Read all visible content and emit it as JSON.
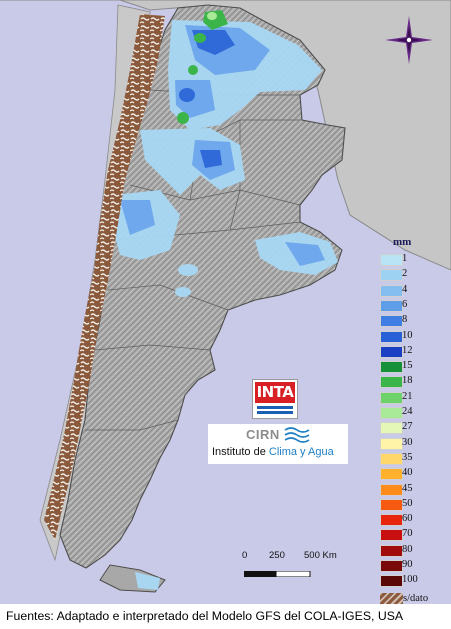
{
  "legend": {
    "unit": "mm",
    "entries": [
      {
        "label": "1",
        "color": "#b8e4f5"
      },
      {
        "label": "2",
        "color": "#9dd2f2"
      },
      {
        "label": "4",
        "color": "#84bdef"
      },
      {
        "label": "6",
        "color": "#5e9ee9"
      },
      {
        "label": "8",
        "color": "#3f7fe3"
      },
      {
        "label": "10",
        "color": "#2860d8"
      },
      {
        "label": "12",
        "color": "#1a3fc2"
      },
      {
        "label": "15",
        "color": "#16913a"
      },
      {
        "label": "18",
        "color": "#3bb54a"
      },
      {
        "label": "21",
        "color": "#6dd26a"
      },
      {
        "label": "24",
        "color": "#a9ea98"
      },
      {
        "label": "27",
        "color": "#e4f7b6"
      },
      {
        "label": "30",
        "color": "#fff4a8"
      },
      {
        "label": "35",
        "color": "#ffd76a"
      },
      {
        "label": "40",
        "color": "#ffb12e"
      },
      {
        "label": "45",
        "color": "#ff8c1a"
      },
      {
        "label": "50",
        "color": "#f55a10"
      },
      {
        "label": "60",
        "color": "#e8260c"
      },
      {
        "label": "70",
        "color": "#c81010"
      },
      {
        "label": "80",
        "color": "#a00c0c"
      },
      {
        "label": "90",
        "color": "#7a0a0a"
      },
      {
        "label": "100",
        "color": "#5a0707"
      }
    ],
    "nodata_label": "s/dato",
    "nodata_color": "#8b5a3c"
  },
  "scale": {
    "labels": [
      "0",
      "250",
      "500 Km"
    ]
  },
  "logos": {
    "inta": "INTA",
    "cirn": "CIRN",
    "institute_prefix": "Instituto de ",
    "institute_accent": "Clima y Agua"
  },
  "footer": {
    "source": "Fuentes: Adaptado e interpretado del Modelo GFS del COLA-IGES, USA"
  },
  "colors": {
    "ocean": "#c9c9e8",
    "land_neighbors": "#c0c0c0",
    "argentina_relief": "#9a9a9a",
    "border_line": "#5a5a5a"
  }
}
